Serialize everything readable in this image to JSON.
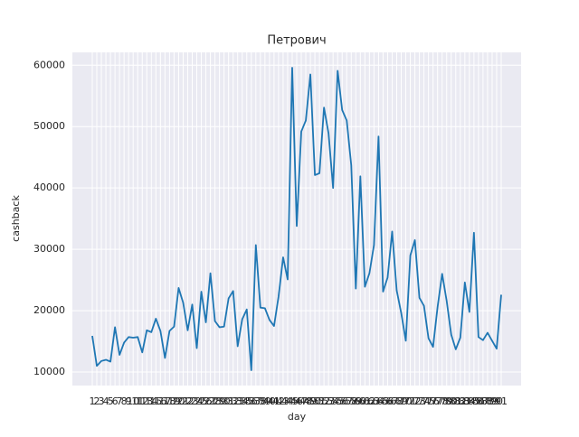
{
  "chart_data": {
    "type": "line",
    "title": "Петрович",
    "xlabel": "day",
    "ylabel": "cashback",
    "categories": [
      "1",
      "2",
      "3",
      "4",
      "5",
      "6",
      "7",
      "8",
      "9",
      "10",
      "11",
      "12",
      "13",
      "14",
      "15",
      "16",
      "17",
      "18",
      "19",
      "20",
      "21",
      "22",
      "23",
      "24",
      "25",
      "26",
      "27",
      "28",
      "29",
      "30",
      "31",
      "32",
      "33",
      "34",
      "35",
      "36",
      "37",
      "38",
      "39",
      "40",
      "41",
      "42",
      "43",
      "44",
      "45",
      "46",
      "47",
      "48",
      "49",
      "50",
      "51",
      "52",
      "53",
      "54",
      "55",
      "56",
      "57",
      "58",
      "59",
      "60",
      "61",
      "62",
      "63",
      "64",
      "65",
      "66",
      "67",
      "68",
      "69",
      "70",
      "71",
      "72",
      "73",
      "74",
      "75",
      "76",
      "77",
      "78",
      "79",
      "80",
      "81",
      "82",
      "83",
      "84",
      "85",
      "86",
      "87",
      "88",
      "89",
      "90",
      "91"
    ],
    "series": [
      {
        "name": "cashback",
        "color": "#1f77b4",
        "values": [
          15900,
          11000,
          11800,
          12000,
          11700,
          17300,
          12800,
          14800,
          15700,
          15600,
          15700,
          13200,
          16800,
          16500,
          18700,
          16700,
          12300,
          16700,
          17400,
          23700,
          21300,
          16800,
          21000,
          13900,
          23100,
          18100,
          26100,
          18300,
          17300,
          17400,
          22000,
          23200,
          14200,
          18600,
          20200,
          10300,
          30700,
          20500,
          20400,
          18500,
          17500,
          22300,
          28700,
          25100,
          59600,
          33800,
          49200,
          51000,
          58500,
          42100,
          42400,
          53100,
          48900,
          40000,
          59100,
          52700,
          51000,
          43700,
          23600,
          41900,
          23900,
          26100,
          30700,
          48400,
          23100,
          25400,
          32900,
          23300,
          19600,
          15100,
          29000,
          31500,
          22100,
          20800,
          15500,
          14100,
          20600,
          26000,
          21600,
          16100,
          13700,
          15600,
          24600,
          19800,
          32700,
          15700,
          15200,
          16400,
          15100,
          13800,
          22600
        ]
      }
    ],
    "ylim": [
      7800,
      62100
    ],
    "yticks": [
      10000,
      20000,
      30000,
      40000,
      50000,
      60000
    ],
    "grid": true
  }
}
